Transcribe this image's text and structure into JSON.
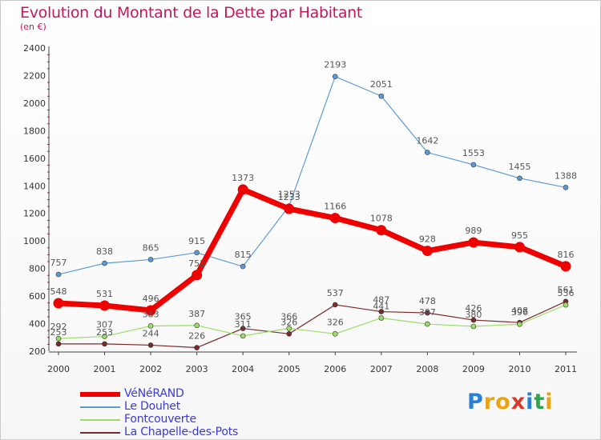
{
  "title": "Evolution du Montant de la Dette par Habitant",
  "subtitle": "(en €)",
  "logo": {
    "letters": [
      "P",
      "r",
      "o",
      "x",
      "i",
      "t",
      "i"
    ],
    "colors": [
      "#2a7fd4",
      "#e8a317",
      "#e8a317",
      "#d83a2a",
      "#2a7fd4",
      "#2aa84a",
      "#e8a317"
    ]
  },
  "chart_data": {
    "type": "line",
    "title": "Evolution du Montant de la Dette par Habitant",
    "subtitle": "(en €)",
    "xlabel": "",
    "ylabel": "",
    "categories": [
      "2000",
      "2001",
      "2002",
      "2003",
      "2004",
      "2005",
      "2006",
      "2007",
      "2008",
      "2009",
      "2010",
      "2011"
    ],
    "yticks": [
      "200",
      "400",
      "600",
      "800",
      "1000",
      "1200",
      "1400",
      "1600",
      "1800",
      "2000",
      "2200",
      "2400"
    ],
    "ylim": [
      200,
      2400
    ],
    "grid": false,
    "legend_position": "bottom-left",
    "series": [
      {
        "name": "VéNéRAND",
        "color": "#ee0000",
        "values": [
          548,
          531,
          496,
          752,
          1373,
          1233,
          1166,
          1078,
          928,
          989,
          955,
          816
        ]
      },
      {
        "name": "Le Douhet",
        "color": "#5b9bd5",
        "values": [
          757,
          838,
          865,
          915,
          815,
          1253,
          2193,
          2051,
          1642,
          1553,
          1455,
          1388
        ]
      },
      {
        "name": "Fontcouverte",
        "color": "#99dd66",
        "values": [
          292,
          307,
          383,
          387,
          311,
          366,
          326,
          441,
          397,
          380,
          396,
          536
        ]
      },
      {
        "name": "La Chapelle-des-Pots",
        "color": "#7a2a2a",
        "values": [
          253,
          253,
          244,
          226,
          365,
          326,
          537,
          487,
          478,
          426,
          408,
          561
        ]
      }
    ]
  }
}
